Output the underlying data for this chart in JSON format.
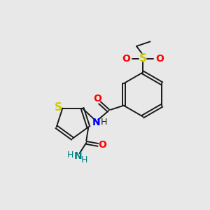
{
  "background_color": "#e8e8e8",
  "bond_color": "#1a1a1a",
  "S_color": "#cccc00",
  "O_color": "#ff0000",
  "N_color": "#0000ff",
  "NH2_color": "#008080",
  "figsize": [
    3.0,
    3.0
  ],
  "dpi": 100,
  "xlim": [
    0,
    10
  ],
  "ylim": [
    0,
    10
  ],
  "lw": 1.4,
  "fs": 9
}
